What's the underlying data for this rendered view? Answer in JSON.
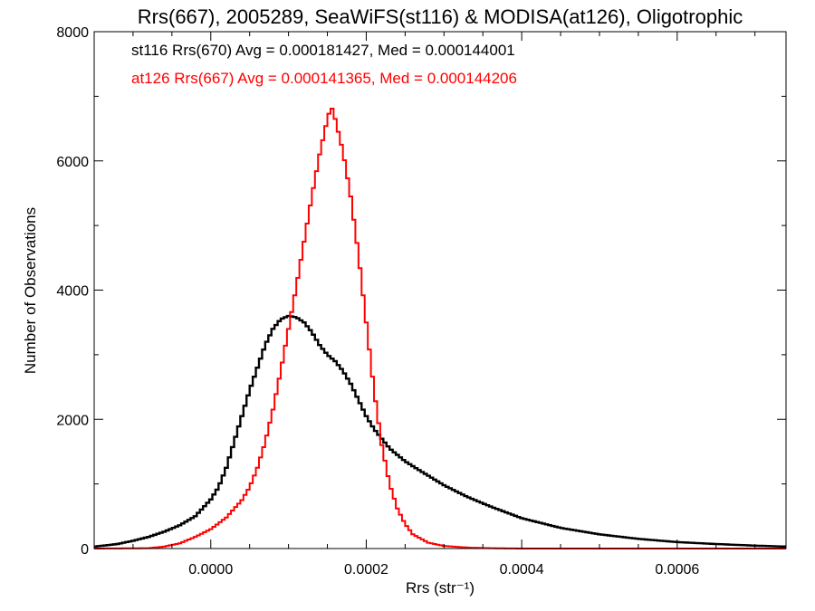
{
  "chart_data": {
    "type": "line",
    "title": "Rrs(667), 2005289, SeaWiFS(st116) & MODISA(at126), Oligotrophic",
    "xlabel": "Rrs (str⁻¹)",
    "ylabel": "Number of Observations",
    "xlim": [
      -0.00015,
      0.00074
    ],
    "ylim": [
      0,
      8000
    ],
    "x_ticks": [
      0.0,
      0.0002,
      0.0004,
      0.0006
    ],
    "x_tick_labels": [
      "0.0000",
      "0.0002",
      "0.0004",
      "0.0006"
    ],
    "y_ticks": [
      0,
      2000,
      4000,
      6000,
      8000
    ],
    "y_tick_labels": [
      "0",
      "2000",
      "4000",
      "6000",
      "8000"
    ],
    "grid": false,
    "legend_position": "top-left",
    "series": [
      {
        "name": "st116 Rrs(670) Avg = 0.000181427, Med = 0.000144001",
        "color": "#000000",
        "step": "histogram",
        "points": [
          [
            -0.00015,
            30
          ],
          [
            -0.00012,
            70
          ],
          [
            -0.0001,
            120
          ],
          [
            -8e-05,
            180
          ],
          [
            -6e-05,
            260
          ],
          [
            -4e-05,
            360
          ],
          [
            -2e-05,
            500
          ],
          [
            0.0,
            760
          ],
          [
            1e-05,
            950
          ],
          [
            2e-05,
            1250
          ],
          [
            3e-05,
            1650
          ],
          [
            4e-05,
            2050
          ],
          [
            5e-05,
            2450
          ],
          [
            6e-05,
            2800
          ],
          [
            7e-05,
            3150
          ],
          [
            8e-05,
            3400
          ],
          [
            9e-05,
            3550
          ],
          [
            0.0001,
            3600
          ],
          [
            0.00011,
            3580
          ],
          [
            0.00012,
            3500
          ],
          [
            0.00013,
            3350
          ],
          [
            0.00014,
            3150
          ],
          [
            0.00015,
            3000
          ],
          [
            0.00016,
            2900
          ],
          [
            0.00017,
            2750
          ],
          [
            0.00018,
            2550
          ],
          [
            0.00019,
            2300
          ],
          [
            0.0002,
            2050
          ],
          [
            0.00021,
            1850
          ],
          [
            0.00022,
            1700
          ],
          [
            0.00023,
            1550
          ],
          [
            0.00024,
            1450
          ],
          [
            0.00025,
            1350
          ],
          [
            0.00027,
            1200
          ],
          [
            0.0003,
            980
          ],
          [
            0.00033,
            800
          ],
          [
            0.00036,
            650
          ],
          [
            0.0004,
            470
          ],
          [
            0.00045,
            320
          ],
          [
            0.0005,
            220
          ],
          [
            0.00055,
            150
          ],
          [
            0.0006,
            100
          ],
          [
            0.00065,
            70
          ],
          [
            0.0007,
            45
          ],
          [
            0.00074,
            30
          ]
        ]
      },
      {
        "name": "at126 Rrs(667) Avg = 0.000141365, Med = 0.000144206",
        "color": "#ff0000",
        "step": "histogram",
        "points": [
          [
            -0.00015,
            0
          ],
          [
            -8e-05,
            5
          ],
          [
            -6e-05,
            30
          ],
          [
            -4e-05,
            80
          ],
          [
            -2e-05,
            180
          ],
          [
            0.0,
            300
          ],
          [
            2e-05,
            480
          ],
          [
            4e-05,
            750
          ],
          [
            5e-05,
            950
          ],
          [
            6e-05,
            1250
          ],
          [
            7e-05,
            1650
          ],
          [
            8e-05,
            2150
          ],
          [
            9e-05,
            2750
          ],
          [
            0.0001,
            3400
          ],
          [
            0.00011,
            4050
          ],
          [
            0.00012,
            4750
          ],
          [
            0.00013,
            5450
          ],
          [
            0.00014,
            6100
          ],
          [
            0.00015,
            6650
          ],
          [
            0.000155,
            6850
          ],
          [
            0.00016,
            6650
          ],
          [
            0.00017,
            6150
          ],
          [
            0.00018,
            5450
          ],
          [
            0.00019,
            4550
          ],
          [
            0.0002,
            3500
          ],
          [
            0.00021,
            2450
          ],
          [
            0.00022,
            1600
          ],
          [
            0.00023,
            1000
          ],
          [
            0.00024,
            620
          ],
          [
            0.00025,
            380
          ],
          [
            0.00026,
            220
          ],
          [
            0.00028,
            90
          ],
          [
            0.0003,
            40
          ],
          [
            0.00033,
            15
          ],
          [
            0.00036,
            5
          ],
          [
            0.0004,
            0
          ],
          [
            0.00074,
            0
          ]
        ]
      }
    ]
  }
}
